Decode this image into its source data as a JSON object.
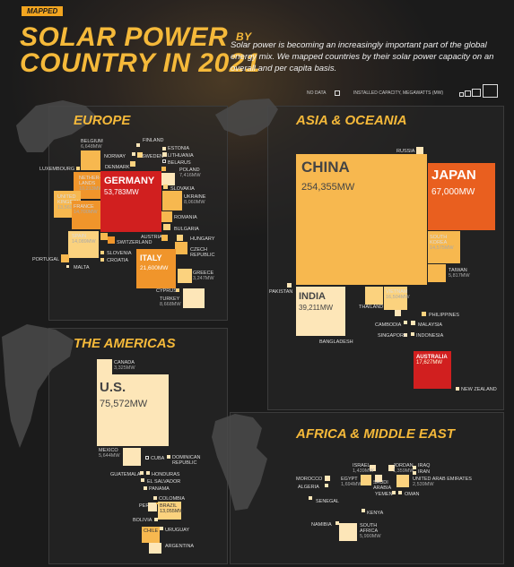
{
  "badge": "MAPPED",
  "title": {
    "line1": "SOLAR POWER",
    "by": "BY",
    "line2": "COUNTRY IN 2021"
  },
  "subtitle": "Solar power is becoming an increasingly important part of the global energy mix. We mapped countries by their solar power capacity on an overall and per capita basis.",
  "legend": {
    "no_data": "NO DATA",
    "capacity": "INSTALLED CAPACITY, MEGAWATTS (MW)"
  },
  "colors": {
    "c1": "#fde6b8",
    "c2": "#fbd27e",
    "c3": "#f7b84f",
    "c4": "#f0952b",
    "c5": "#e95f1f",
    "c6": "#d11f1f"
  },
  "regions": {
    "europe": "EUROPE",
    "asia": "ASIA & OCEANIA",
    "americas": "THE AMERICAS",
    "africa": "AFRICA & MIDDLE EAST"
  },
  "europe": {
    "germany": {
      "name": "GERMANY",
      "value": "53,783MW"
    },
    "italy": {
      "name": "ITALY",
      "value": "21,600MW"
    },
    "netherlands": {
      "name": "NETHER-\nLANDS",
      "value": "10,213MW"
    },
    "france": {
      "name": "FRANCE",
      "value": "14,700MW"
    },
    "uk": {
      "name": "UNITED\nKINGDOM",
      "value": "13,563MW"
    },
    "spain": {
      "name": "SPAIN",
      "value": "14,089MW"
    },
    "belgium": {
      "name": "BELGIUM",
      "value": "6,648MW"
    },
    "ukraine": {
      "name": "UKRAINE",
      "value": "8,060MW"
    },
    "poland": {
      "name": "POLAND",
      "value": "7,416MW"
    },
    "greece": {
      "name": "GREECE",
      "value": "3,247MW"
    },
    "turkey": {
      "name": "TURKEY",
      "value": "8,668MW"
    },
    "names": [
      "FINLAND",
      "ESTONIA",
      "NORWAY",
      "SWEDEN",
      "LITHUANIA",
      "DENMARK",
      "BELARUS",
      "LUXEMBOURG",
      "SLOVAKIA",
      "ROMANIA",
      "BULGARIA",
      "HUNGARY",
      "AUSTRIA",
      "SWITZERLAND",
      "SLOVENIA",
      "CROATIA",
      "CZECH\nREPUBLIC",
      "PORTUGAL",
      "MALTA",
      "CYPRUS"
    ]
  },
  "asia": {
    "china": {
      "name": "CHINA",
      "value": "254,355MW"
    },
    "japan": {
      "name": "JAPAN",
      "value": "67,000MW"
    },
    "india": {
      "name": "INDIA",
      "value": "39,211MW"
    },
    "korea": {
      "name": "SOUTH\nKOREA",
      "value": "14,575MW"
    },
    "vietnam": {
      "name": "VIETNAM",
      "value": "16,504MW"
    },
    "taiwan": {
      "name": "TAIWAN",
      "value": "5,817MW"
    },
    "australia": {
      "name": "AUSTRALIA",
      "value": "17,627MW"
    },
    "names": [
      "RUSSIA",
      "PAKISTAN",
      "THAILAND",
      "BANGLADESH",
      "PHILIPPINES",
      "CAMBODIA",
      "MALAYSIA",
      "SINGAPORE",
      "INDONESIA",
      "NEW ZEALAND"
    ]
  },
  "americas": {
    "us": {
      "name": "U.S.",
      "value": "75,572MW"
    },
    "canada": {
      "name": "CANADA",
      "value": "3,325MW"
    },
    "mexico": {
      "name": "MEXICO",
      "value": "5,644MW"
    },
    "brazil": {
      "name": "BRAZIL",
      "value": "13,055MW"
    },
    "names": [
      "CUBA",
      "DOMINICAN\nREPUBLIC",
      "GUATEMALA",
      "HONDURAS",
      "EL SALVADOR",
      "PANAMA",
      "COLOMBIA",
      "PERU",
      "BOLIVIA",
      "CHILE",
      "URUGUAY",
      "ARGENTINA"
    ]
  },
  "africa": {
    "egypt": {
      "name": "EGYPT",
      "value": "1,694MW"
    },
    "israel": {
      "name": "ISRAEL",
      "value": "1,439MW"
    },
    "jordan": {
      "name": "JORDAN",
      "value": "1,359MW"
    },
    "uae": {
      "name": "UNITED ARAB EMIRATES",
      "value": "2,539MW"
    },
    "south_africa": {
      "name": "SOUTH\nAFRICA",
      "value": "5,990MW"
    },
    "names": [
      "IRAQ",
      "IRAN",
      "MOROCCO",
      "ALGERIA",
      "SAUDI\nARABIA",
      "YEMEN",
      "OMAN",
      "SENEGAL",
      "KENYA",
      "NAMIBIA"
    ]
  }
}
